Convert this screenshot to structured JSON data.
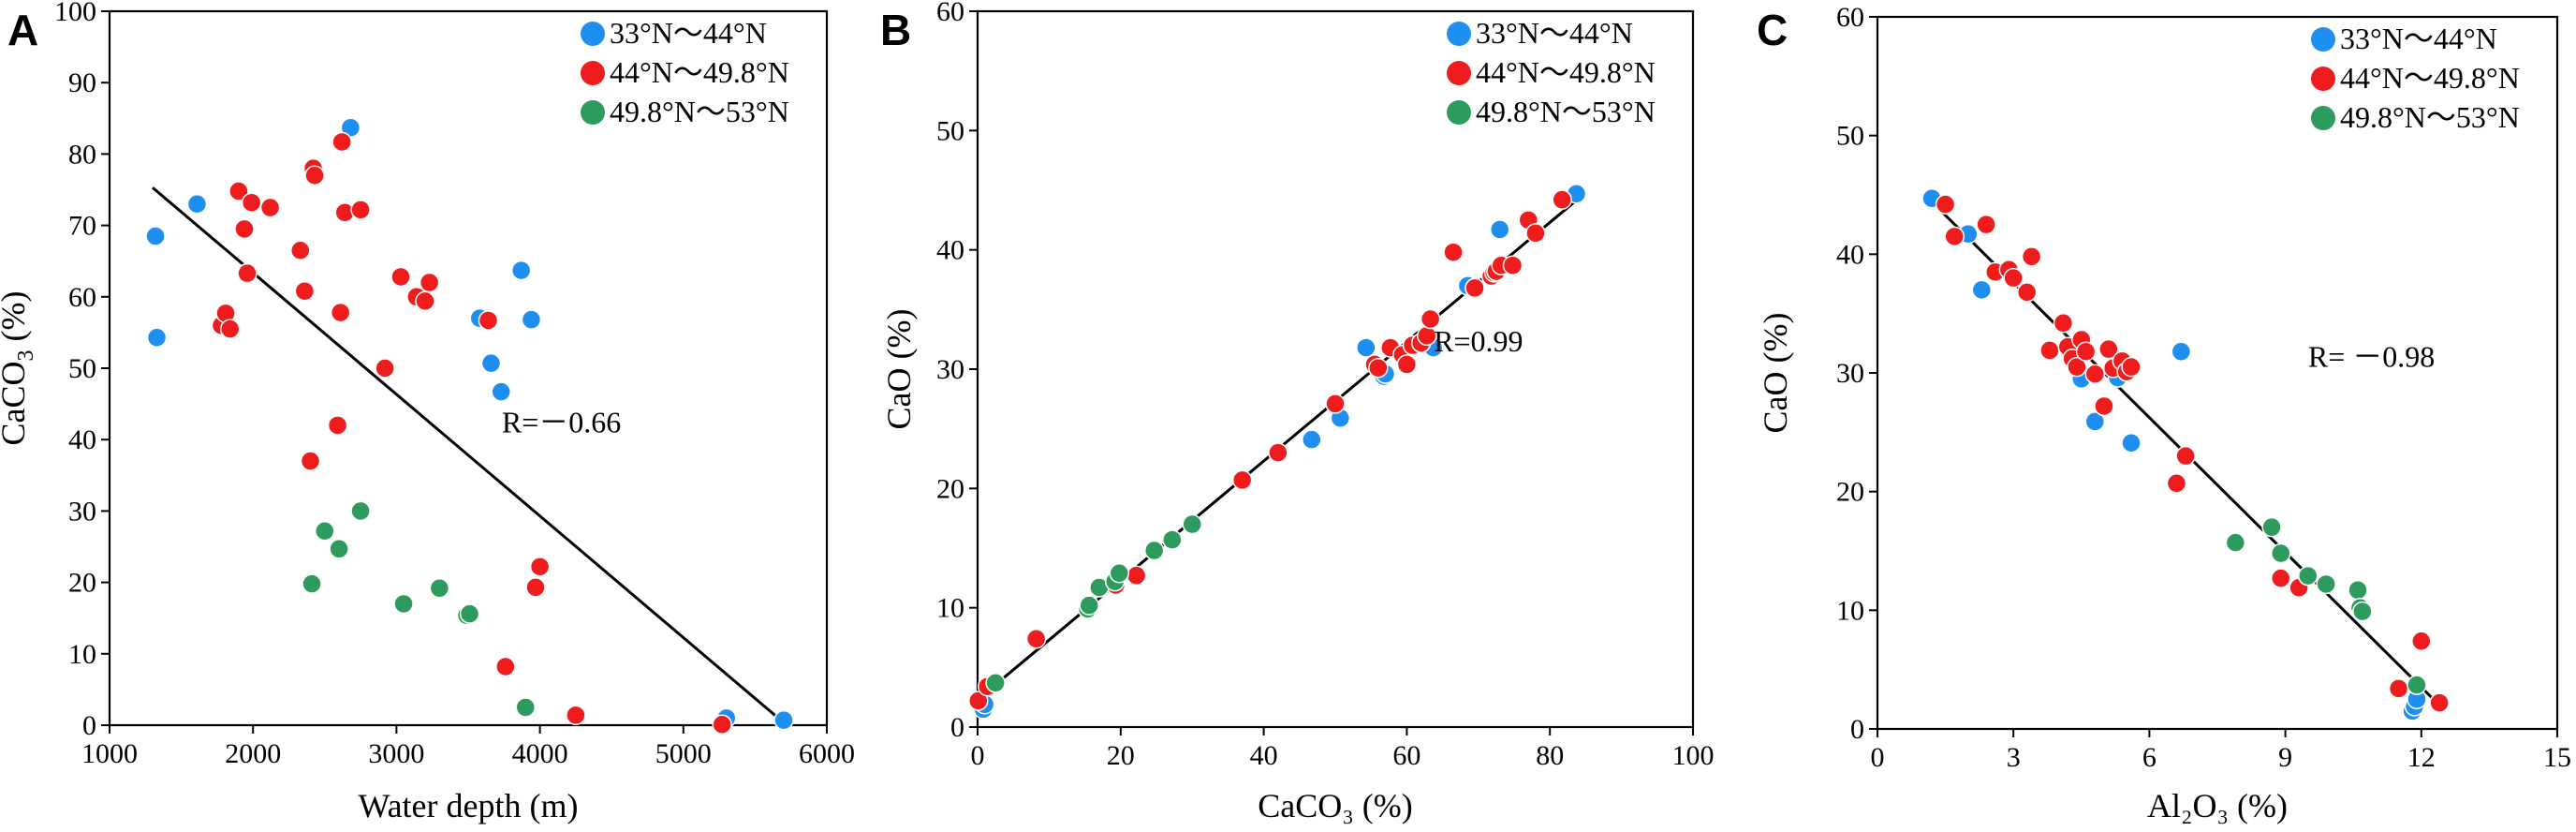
{
  "colors": {
    "blue": "#1f8ef1",
    "red": "#ee1c1c",
    "green": "#2e9b5e",
    "axis": "#000000"
  },
  "chart_data": [
    {
      "panel": "A",
      "type": "scatter",
      "title": "",
      "xlabel": "Water depth (m)",
      "ylabel": {
        "base": "CaCO",
        "sub": "3",
        "tail": " (%)"
      },
      "xlim": [
        1000,
        6000
      ],
      "ylim": [
        0,
        100
      ],
      "xticks": [
        1000,
        2000,
        3000,
        4000,
        5000,
        6000
      ],
      "yticks": [
        0,
        10,
        20,
        30,
        40,
        50,
        60,
        70,
        80,
        90,
        100
      ],
      "xtick_labels": [
        "1000",
        "2000",
        "3000",
        "4000",
        "5000",
        "6000"
      ],
      "ytick_labels": [
        "0",
        "10",
        "20",
        "30",
        "40",
        "50",
        "60",
        "70",
        "80",
        "90",
        "100"
      ],
      "annotation": {
        "text": "R=－0.66",
        "x": 4150,
        "y": 41
      },
      "legend_position": "top-right",
      "fit_line": [
        [
          1300,
          75.3
        ],
        [
          5720,
          0
        ]
      ],
      "series": [
        {
          "name": "33°N～44°N",
          "color": "blue",
          "x": [
            1320,
            1330,
            1610,
            2680,
            3580,
            3660,
            3730,
            3870,
            3940,
            5300,
            5700
          ],
          "y": [
            68.5,
            54.3,
            73,
            83.7,
            57,
            50.7,
            46.7,
            63.7,
            56.8,
            1,
            0.7
          ]
        },
        {
          "name": "44°N～49.8°N",
          "color": "red",
          "x": [
            1780,
            1810,
            1840,
            1900,
            1940,
            1960,
            1990,
            2120,
            2330,
            2360,
            2400,
            2420,
            2430,
            2590,
            2610,
            2620,
            2640,
            2750,
            2920,
            3030,
            3140,
            3200,
            3230,
            3640,
            3760,
            3970,
            4000,
            4250,
            5270
          ],
          "y": [
            56,
            57.7,
            55.5,
            74.8,
            69.5,
            63.3,
            73.2,
            72.5,
            66.5,
            60.8,
            37,
            78,
            77,
            42,
            57.8,
            81.7,
            71.8,
            72.2,
            50,
            62.8,
            60,
            59.4,
            62,
            56.7,
            8.2,
            19.3,
            22.2,
            1.4,
            0.1
          ]
        },
        {
          "name": "49.8°N～53°N",
          "color": "green",
          "x": [
            2410,
            2500,
            2600,
            2750,
            3050,
            3300,
            3490,
            3510,
            3900
          ],
          "y": [
            19.8,
            27.2,
            24.7,
            30,
            17,
            19.2,
            15.4,
            15.6,
            2.5
          ]
        }
      ]
    },
    {
      "panel": "B",
      "type": "scatter",
      "title": "",
      "xlabel": "CaCO₃ (%)",
      "ylabel": {
        "base": "CaO (%)",
        "sub": "",
        "tail": ""
      },
      "xlim": [
        0,
        100
      ],
      "ylim": [
        0,
        60
      ],
      "xticks": [
        0,
        20,
        40,
        60,
        80,
        100
      ],
      "yticks": [
        0,
        10,
        20,
        30,
        40,
        50,
        60
      ],
      "xtick_labels": [
        "0",
        "20",
        "40",
        "60",
        "80",
        "100"
      ],
      "ytick_labels": [
        "0",
        "10",
        "20",
        "30",
        "40",
        "50",
        "60"
      ],
      "annotation": {
        "text": "R=0.99",
        "x": 70,
        "y": 31.5
      },
      "legend_position": "top-right",
      "fit_line": [
        [
          0,
          2.3
        ],
        [
          84,
          44.3
        ]
      ],
      "series": [
        {
          "name": "33°N～44°N",
          "color": "blue",
          "x": [
            0.8,
            1,
            46.7,
            50.7,
            54.3,
            56.8,
            57,
            63.7,
            68.5,
            73,
            83.7
          ],
          "y": [
            1.5,
            1.9,
            24.1,
            25.9,
            31.8,
            29.4,
            29.6,
            31.8,
            37,
            41.7,
            44.7
          ]
        },
        {
          "name": "44°N～49.8°N",
          "color": "red",
          "x": [
            0.1,
            1.4,
            8.2,
            19.3,
            22.2,
            37,
            42,
            50,
            55.5,
            56,
            57.7,
            59.4,
            60,
            60.8,
            62,
            62.8,
            63.3,
            66.5,
            69.5,
            71.8,
            72.2,
            72.5,
            73.2,
            74.8,
            77,
            78,
            81.7
          ],
          "y": [
            2.2,
            3.4,
            7.4,
            11.9,
            12.7,
            20.7,
            23,
            27.1,
            30.4,
            30.1,
            31.8,
            31.2,
            30.4,
            32,
            32.2,
            32.8,
            34.2,
            39.8,
            36.8,
            37.8,
            38.1,
            38.2,
            38.7,
            38.7,
            42.5,
            41.4,
            44.2
          ]
        },
        {
          "name": "49.8°N～53°N",
          "color": "green",
          "x": [
            2.5,
            15.4,
            15.6,
            17,
            19.2,
            19.8,
            24.7,
            27.2,
            30
          ],
          "y": [
            3.7,
            9.9,
            10.2,
            11.7,
            12.2,
            12.9,
            14.8,
            15.7,
            17
          ]
        }
      ]
    },
    {
      "panel": "C",
      "type": "scatter",
      "title": "",
      "xlabel": "Al₂O₃ (%)",
      "ylabel": {
        "base": "CaO (%)",
        "sub": "",
        "tail": ""
      },
      "xlim": [
        0,
        15
      ],
      "ylim": [
        0,
        60
      ],
      "xticks": [
        0,
        3,
        6,
        9,
        12,
        15
      ],
      "yticks": [
        0,
        10,
        20,
        30,
        40,
        50,
        60
      ],
      "xtick_labels": [
        "0",
        "3",
        "6",
        "9",
        "12",
        "15"
      ],
      "ytick_labels": [
        "0",
        "10",
        "20",
        "30",
        "40",
        "50",
        "60"
      ],
      "annotation": {
        "text": "R= －0.98",
        "x": 10.9,
        "y": 30.5
      },
      "legend_position": "top-right",
      "fit_line": [
        [
          1.15,
          44.6
        ],
        [
          12.4,
          2
        ]
      ],
      "series": [
        {
          "name": "33°N～44°N",
          "color": "blue",
          "x": [
            1.2,
            2,
            2.3,
            4.5,
            4.8,
            5.3,
            5.6,
            6.7,
            11.8,
            11.85,
            11.9
          ],
          "y": [
            44.7,
            41.7,
            37,
            29.5,
            25.9,
            29.6,
            24.1,
            31.8,
            1.5,
            1.9,
            2.5
          ]
        },
        {
          "name": "44°N～49.8°N",
          "color": "red",
          "x": [
            1.5,
            1.7,
            2.4,
            2.6,
            2.9,
            3,
            3.3,
            3.4,
            3.8,
            4.1,
            4.2,
            4.3,
            4.4,
            4.5,
            4.6,
            4.8,
            5,
            5.1,
            5.2,
            5.4,
            5.5,
            5.6,
            6.6,
            6.8,
            8.9,
            9.3,
            11.5,
            12,
            12.4
          ],
          "y": [
            44.2,
            41.5,
            42.5,
            38.5,
            38.7,
            38,
            36.8,
            39.8,
            31.9,
            34.2,
            32.2,
            31.2,
            30.5,
            32.8,
            31.8,
            29.9,
            27.2,
            32,
            30.4,
            31,
            30.1,
            30.5,
            20.7,
            23,
            12.7,
            11.9,
            3.4,
            7.4,
            2.2
          ]
        },
        {
          "name": "49.8°N～53°N",
          "color": "green",
          "x": [
            7.9,
            8.7,
            8.9,
            9.5,
            9.9,
            10.6,
            10.65,
            10.7,
            11.9
          ],
          "y": [
            15.7,
            17,
            14.8,
            12.9,
            12.2,
            11.7,
            10.2,
            9.9,
            3.7
          ]
        }
      ]
    }
  ]
}
